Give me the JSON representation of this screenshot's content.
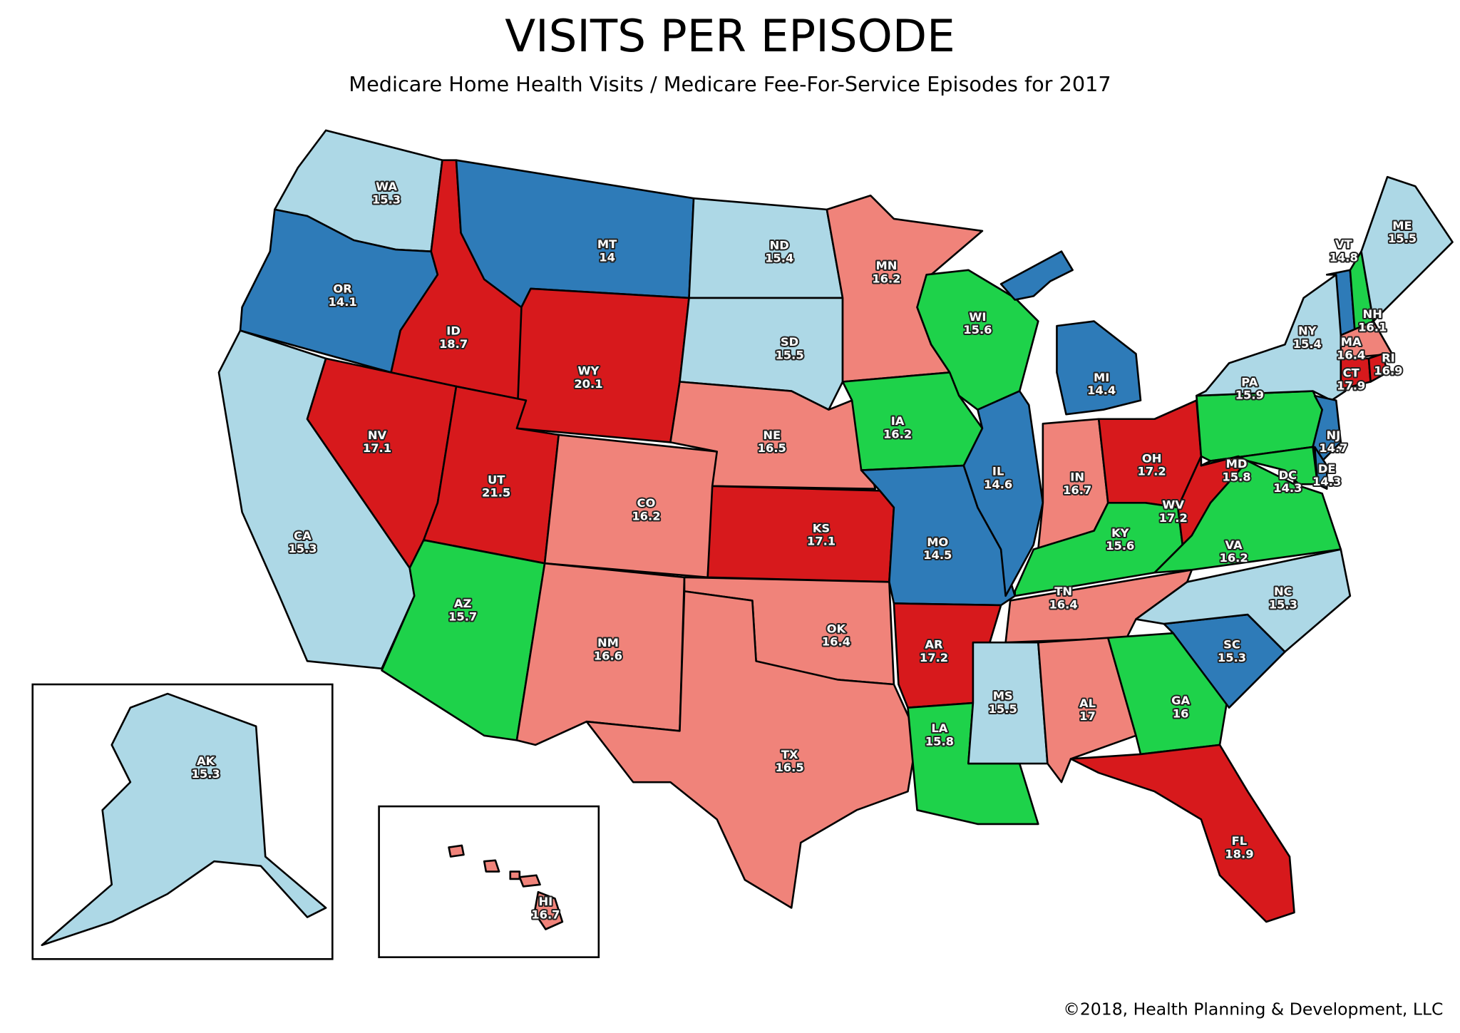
{
  "header": {
    "title": "VISITS PER EPISODE",
    "subtitle": "Medicare Home Health Visits / Medicare Fee-For-Service Episodes for 2017"
  },
  "regions": [
    {
      "abbr": "WA",
      "value": 15.3,
      "color": "#add8e6"
    },
    {
      "abbr": "OR",
      "value": 14.1,
      "color": "#2e7bb8"
    },
    {
      "abbr": "CA",
      "value": 15.3,
      "color": "#add8e6"
    },
    {
      "abbr": "ID",
      "value": 18.7,
      "color": "#d7191c"
    },
    {
      "abbr": "NV",
      "value": 17.1,
      "color": "#d7191c"
    },
    {
      "abbr": "MT",
      "value": 14,
      "color": "#2e7bb8"
    },
    {
      "abbr": "WY",
      "value": 20.1,
      "color": "#d7191c"
    },
    {
      "abbr": "UT",
      "value": 21.5,
      "color": "#d7191c"
    },
    {
      "abbr": "AZ",
      "value": 15.7,
      "color": "#1ed24a"
    },
    {
      "abbr": "CO",
      "value": 16.2,
      "color": "#f0837a"
    },
    {
      "abbr": "NM",
      "value": 16.6,
      "color": "#f0837a"
    },
    {
      "abbr": "ND",
      "value": 15.4,
      "color": "#add8e6"
    },
    {
      "abbr": "SD",
      "value": 15.5,
      "color": "#add8e6"
    },
    {
      "abbr": "NE",
      "value": 16.5,
      "color": "#f0837a"
    },
    {
      "abbr": "KS",
      "value": 17.1,
      "color": "#d7191c"
    },
    {
      "abbr": "OK",
      "value": 16.4,
      "color": "#f0837a"
    },
    {
      "abbr": "TX",
      "value": 16.5,
      "color": "#f0837a"
    },
    {
      "abbr": "MN",
      "value": 16.2,
      "color": "#f0837a"
    },
    {
      "abbr": "IA",
      "value": 16.2,
      "color": "#1ed24a"
    },
    {
      "abbr": "MO",
      "value": 14.5,
      "color": "#2e7bb8"
    },
    {
      "abbr": "AR",
      "value": 17.2,
      "color": "#d7191c"
    },
    {
      "abbr": "LA",
      "value": 15.8,
      "color": "#1ed24a"
    },
    {
      "abbr": "WI",
      "value": 15.6,
      "color": "#1ed24a"
    },
    {
      "abbr": "IL",
      "value": 14.6,
      "color": "#2e7bb8"
    },
    {
      "abbr": "MI",
      "value": 14.4,
      "color": "#2e7bb8"
    },
    {
      "abbr": "IN",
      "value": 16.7,
      "color": "#f0837a"
    },
    {
      "abbr": "OH",
      "value": 17.2,
      "color": "#d7191c"
    },
    {
      "abbr": "KY",
      "value": 15.6,
      "color": "#1ed24a"
    },
    {
      "abbr": "TN",
      "value": 16.4,
      "color": "#f0837a"
    },
    {
      "abbr": "MS",
      "value": 15.5,
      "color": "#add8e6"
    },
    {
      "abbr": "AL",
      "value": 17,
      "color": "#f0837a"
    },
    {
      "abbr": "GA",
      "value": 16,
      "color": "#1ed24a"
    },
    {
      "abbr": "FL",
      "value": 18.9,
      "color": "#d7191c"
    },
    {
      "abbr": "SC",
      "value": 15.3,
      "color": "#2e7bb8"
    },
    {
      "abbr": "NC",
      "value": 15.3,
      "color": "#add8e6"
    },
    {
      "abbr": "VA",
      "value": 16.2,
      "color": "#1ed24a"
    },
    {
      "abbr": "WV",
      "value": 17.2,
      "color": "#d7191c"
    },
    {
      "abbr": "PA",
      "value": 15.9,
      "color": "#1ed24a"
    },
    {
      "abbr": "NY",
      "value": 15.4,
      "color": "#add8e6"
    },
    {
      "abbr": "NJ",
      "value": 14.7,
      "color": "#2e7bb8"
    },
    {
      "abbr": "DE",
      "value": 14.3,
      "color": "#2e7bb8"
    },
    {
      "abbr": "DC",
      "value": 14.3,
      "color": "#2e7bb8"
    },
    {
      "abbr": "MD",
      "value": 15.8,
      "color": "#1ed24a"
    },
    {
      "abbr": "VT",
      "value": 14.8,
      "color": "#2e7bb8"
    },
    {
      "abbr": "NH",
      "value": 16.1,
      "color": "#1ed24a"
    },
    {
      "abbr": "MA",
      "value": 16.4,
      "color": "#f0837a"
    },
    {
      "abbr": "CT",
      "value": 17.9,
      "color": "#d7191c"
    },
    {
      "abbr": "RI",
      "value": 16.9,
      "color": "#d7191c"
    },
    {
      "abbr": "ME",
      "value": 15.5,
      "color": "#add8e6"
    },
    {
      "abbr": "AK",
      "value": 15.3,
      "color": "#add8e6"
    },
    {
      "abbr": "HI",
      "value": 16.7,
      "color": "#f0837a"
    }
  ],
  "footer": {
    "credit": "©2018, Health Planning & Development, LLC"
  }
}
